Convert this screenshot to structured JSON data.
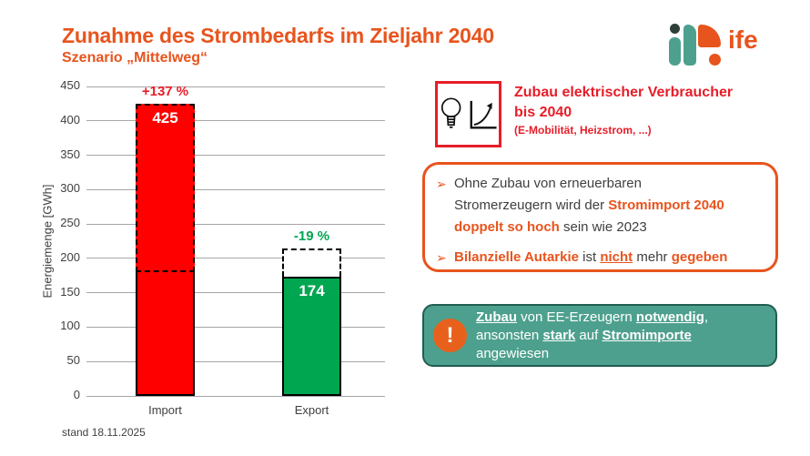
{
  "slide": {
    "title": "Zunahme des Strombedarfs im Zieljahr 2040",
    "subtitle": "Szenario „Mittelweg“",
    "footer": "stand 18.11.2025",
    "logo_text": "ife"
  },
  "colors": {
    "orange": "#E8541D",
    "red_text": "#E71D28",
    "bar_red": "#FE0000",
    "bar_green": "#00A650",
    "teal_box_bg": "#4EA08E",
    "teal_box_border": "#215E50",
    "gridline": "#A6A6A6",
    "dark_text": "#3F3F3F"
  },
  "chart_data": {
    "type": "bar",
    "categories": [
      "Import",
      "Export"
    ],
    "series": [
      {
        "name": "2023",
        "values": [
          180,
          215
        ]
      },
      {
        "name": "2040 Szenario Mittelweg",
        "values": [
          425,
          174
        ]
      }
    ],
    "bar_value_labels": [
      "425",
      "174"
    ],
    "change_labels": [
      "+137 %",
      "-19 %"
    ],
    "bar_colors": [
      "#FE0000",
      "#00A650"
    ],
    "label_colors": [
      "#E71D28",
      "#00A650"
    ],
    "title": "",
    "xlabel": "",
    "ylabel": "Energiemenge [GWh]",
    "ylim": [
      0,
      450
    ],
    "ytick_step": 50,
    "grid": true,
    "legend": "none",
    "annotation_note": "dashed outline marks 2040 scenario level vs solid 2023 level"
  },
  "callout_header": {
    "title_line1": "Zubau elektrischer Verbraucher",
    "title_line2": "bis 2040",
    "subtitle": "(E-Mobilität, Heizstrom, ...)",
    "icons": [
      "lightbulb-icon",
      "growth-chart-icon"
    ]
  },
  "findings_box": {
    "bullets": [
      {
        "marker": "➢",
        "segments": [
          {
            "t": "Ohne Zubau von erneuerbaren",
            "s": "normal"
          },
          {
            "br": true
          },
          {
            "t": "Stromerzeugern wird der ",
            "s": "normal"
          },
          {
            "t": "Stromimport 2040",
            "s": "accent"
          },
          {
            "br": true
          },
          {
            "t": "doppelt so hoch",
            "s": "accent"
          },
          {
            "t": " sein wie 2023",
            "s": "normal"
          }
        ]
      },
      {
        "marker": "➢",
        "segments": [
          {
            "t": "Bilanzielle Autarkie",
            "s": "accent"
          },
          {
            "t": " ist ",
            "s": "normal"
          },
          {
            "t": "nicht",
            "s": "accent-u"
          },
          {
            "t": " mehr ",
            "s": "normal"
          },
          {
            "t": "gegeben",
            "s": "accent"
          }
        ]
      }
    ]
  },
  "warning_box": {
    "icon_glyph": "!",
    "segments": [
      {
        "t": "Zubau",
        "s": "u"
      },
      {
        "t": " von EE-Erzeugern ",
        "s": "normal"
      },
      {
        "t": "notwendig",
        "s": "u"
      },
      {
        "t": ",",
        "s": "normal"
      },
      {
        "br": true
      },
      {
        "t": "ansonsten ",
        "s": "normal"
      },
      {
        "t": "stark",
        "s": "u"
      },
      {
        "t": " auf ",
        "s": "normal"
      },
      {
        "t": "Stromimporte",
        "s": "u"
      },
      {
        "br": true
      },
      {
        "t": "angewiesen",
        "s": "normal"
      }
    ]
  }
}
